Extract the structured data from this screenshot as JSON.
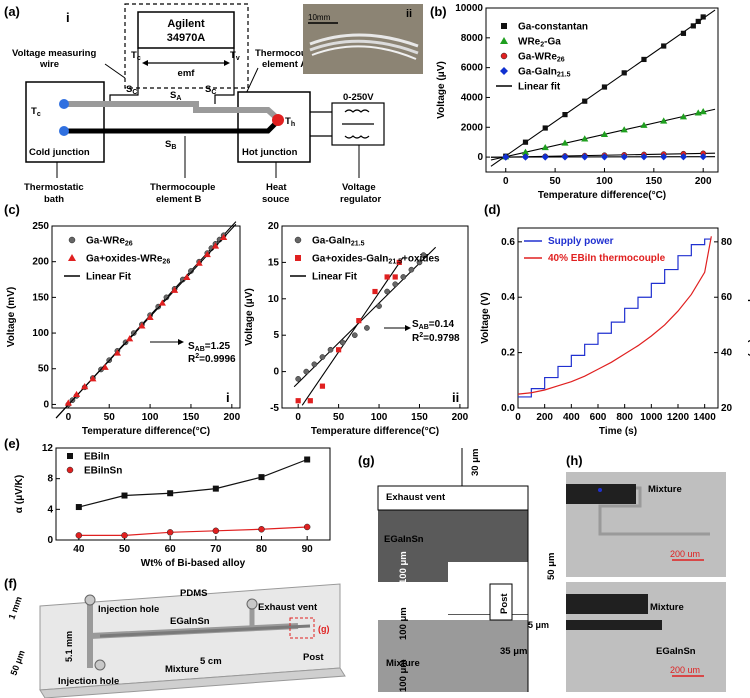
{
  "panel_labels": {
    "a": "(a)",
    "b": "(b)",
    "c": "(c)",
    "d": "(d)",
    "e": "(e)",
    "f": "(f)",
    "g": "(g)",
    "h": "(h)"
  },
  "panel_a": {
    "sub_i": "i",
    "sub_ii": "ii",
    "instrument_line1": "Agilent",
    "instrument_line2": "34970A",
    "tc": "T",
    "tc_sub": "c",
    "tv": "T",
    "tv_sub": "v",
    "emf": "emf",
    "sc": "S",
    "sc_sub": "C",
    "sa": "S",
    "sa_sub": "A",
    "sb": "S",
    "sb_sub": "B",
    "th": "T",
    "th_sub": "h",
    "tcold": "T",
    "tcold_sub": "c",
    "voltage_wire_1": "Voltage measuring",
    "voltage_wire_2": "wire",
    "element_a_1": "Thermocouple",
    "element_a_2": "element A",
    "source_range": "0-250V",
    "cold_junction": "Cold junction",
    "hot_junction": "Hot junction",
    "bath_1": "Thermostatic",
    "bath_2": "bath",
    "element_b_1": "Thermocouple",
    "element_b_2": "element B",
    "heat_1": "Heat",
    "heat_2": "souce",
    "reg_1": "Voltage",
    "reg_2": "regulator",
    "scale_bar": "10mm"
  },
  "chart_data": [
    {
      "id": "b",
      "type": "scatter",
      "xlabel": "Temperature difference(°C)",
      "ylabel": "Voltage (μV)",
      "xlim": [
        -20,
        215
      ],
      "ylim": [
        -1000,
        10000
      ],
      "xticks": [
        "0",
        "50",
        "100",
        "150",
        "200"
      ],
      "yticks": [
        "0",
        "2000",
        "4000",
        "6000",
        "8000",
        "10000"
      ],
      "legend_position": "top-left",
      "series": [
        {
          "name": "Ga-constantan",
          "marker": "square",
          "color": "#111111",
          "x": [
            0,
            20,
            40,
            60,
            80,
            100,
            120,
            140,
            160,
            180,
            190,
            195,
            200
          ],
          "values": [
            60,
            1000,
            1950,
            2850,
            3750,
            4700,
            5650,
            6550,
            7450,
            8300,
            8800,
            9100,
            9400
          ]
        },
        {
          "name": "WRe",
          "name_sub": "2",
          "name_tail": "-Ga",
          "marker": "triangle",
          "color": "#1f9f1f",
          "x": [
            0,
            20,
            40,
            60,
            80,
            100,
            120,
            140,
            160,
            180,
            195,
            200
          ],
          "values": [
            20,
            330,
            640,
            940,
            1220,
            1520,
            1830,
            2130,
            2420,
            2700,
            2960,
            3050
          ]
        },
        {
          "name": "Ga-WRe",
          "name_sub": "26",
          "marker": "circle",
          "color": "#e02020",
          "x": [
            0,
            20,
            40,
            60,
            80,
            100,
            120,
            140,
            160,
            180,
            200
          ],
          "values": [
            0,
            25,
            50,
            75,
            100,
            125,
            150,
            175,
            200,
            225,
            250
          ]
        },
        {
          "name": "Ga-GaIn",
          "name_sub": "21.5",
          "marker": "diamond",
          "color": "#1030d0",
          "x": [
            0,
            20,
            40,
            60,
            80,
            100,
            120,
            140,
            160,
            180,
            200
          ],
          "values": [
            0,
            3,
            6,
            9,
            12,
            14,
            17,
            20,
            22,
            25,
            28
          ]
        }
      ],
      "fit_label": "Linear fit"
    },
    {
      "id": "c-i",
      "type": "scatter",
      "sub": "i",
      "xlabel": "Temperature difference(°C)",
      "ylabel": "Voltage (mV)",
      "xlim": [
        -20,
        210
      ],
      "ylim": [
        -5,
        250
      ],
      "xticks": [
        "0",
        "50",
        "100",
        "150",
        "200"
      ],
      "yticks": [
        "0",
        "50",
        "100",
        "150",
        "200",
        "250"
      ],
      "series": [
        {
          "name": "Ga-WRe",
          "name_sub": "26",
          "marker": "circle",
          "color": "#666666",
          "x": [
            0,
            5,
            10,
            20,
            30,
            40,
            50,
            60,
            70,
            80,
            90,
            100,
            110,
            120,
            130,
            140,
            150,
            160,
            170,
            175,
            180,
            185,
            190
          ],
          "values": [
            0,
            6,
            12,
            24,
            37,
            49,
            62,
            75,
            87,
            100,
            112,
            125,
            137,
            150,
            162,
            175,
            187,
            200,
            212,
            219,
            225,
            231,
            237
          ]
        },
        {
          "name": "Ga+oxides-WRe",
          "name_sub": "26",
          "marker": "triangle",
          "color": "#e02020",
          "x": [
            0,
            10,
            20,
            30,
            45,
            60,
            75,
            90,
            100,
            115,
            130,
            145,
            160,
            170,
            180,
            190
          ],
          "values": [
            2,
            14,
            25,
            36,
            52,
            72,
            92,
            110,
            122,
            142,
            160,
            178,
            198,
            210,
            222,
            234
          ]
        }
      ],
      "fit_label": "Linear Fit",
      "annotation_s": "S",
      "annotation_s_sub": "AB",
      "annotation_s_val": "=1.25",
      "annotation_r": "R",
      "annotation_r_sup": "2",
      "annotation_r_val": "=0.9996"
    },
    {
      "id": "c-ii",
      "type": "scatter",
      "sub": "ii",
      "xlabel": "Temperature difference(°C)",
      "ylabel": "Voltage (μV)",
      "xlim": [
        -20,
        210
      ],
      "ylim": [
        -5,
        20
      ],
      "xticks": [
        "0",
        "50",
        "100",
        "150",
        "200"
      ],
      "yticks": [
        "-5",
        "0",
        "5",
        "10",
        "15",
        "20"
      ],
      "series": [
        {
          "name": "Ga-GaIn",
          "name_sub": "21.5",
          "marker": "circle",
          "color": "#666666",
          "x": [
            0,
            10,
            20,
            30,
            40,
            55,
            70,
            85,
            100,
            110,
            120,
            130,
            140,
            150,
            155
          ],
          "values": [
            -1,
            0,
            1,
            2,
            3,
            4,
            5,
            6,
            9,
            11,
            12,
            13,
            14,
            15,
            16
          ]
        },
        {
          "name": "Ga+oxides-GaIn",
          "name_sub": "21.5",
          "name_tail": "+oxides",
          "marker": "square",
          "color": "#e02020",
          "x": [
            0,
            15,
            30,
            50,
            75,
            95,
            110,
            120,
            125
          ],
          "values": [
            -4,
            -4,
            -2,
            3,
            7,
            11,
            13,
            13,
            15
          ]
        }
      ],
      "fit_label": "Linear Fit",
      "annotation_s": "S",
      "annotation_s_sub": "AB",
      "annotation_s_val": "=0.14",
      "annotation_r": "R",
      "annotation_r_sup": "2",
      "annotation_r_val": "=0.9798"
    },
    {
      "id": "d",
      "type": "line",
      "xlabel": "Time (s)",
      "ylabel": "Voltage (V)",
      "y2label": "Temperature(°C)",
      "xlim": [
        0,
        1500
      ],
      "ylim": [
        0,
        0.65
      ],
      "y2lim": [
        20,
        85
      ],
      "xticks": [
        "0",
        "200",
        "400",
        "600",
        "800",
        "1000",
        "1200",
        "1400"
      ],
      "yticks": [
        "0.0",
        "0.2",
        "0.4",
        "0.6"
      ],
      "y2ticks": [
        "20",
        "40",
        "60",
        "80"
      ],
      "legend_position": "top-left",
      "series": [
        {
          "name": "Supply power",
          "color": "#2030d0",
          "x": [
            0,
            100,
            100,
            200,
            200,
            300,
            300,
            400,
            400,
            500,
            500,
            600,
            600,
            700,
            700,
            800,
            800,
            900,
            900,
            1000,
            1000,
            1100,
            1100,
            1200,
            1200,
            1300,
            1300,
            1400,
            1400,
            1450
          ],
          "values": [
            0.04,
            0.04,
            0.07,
            0.07,
            0.11,
            0.11,
            0.15,
            0.15,
            0.19,
            0.19,
            0.23,
            0.23,
            0.27,
            0.27,
            0.31,
            0.31,
            0.36,
            0.36,
            0.4,
            0.4,
            0.45,
            0.45,
            0.5,
            0.5,
            0.55,
            0.55,
            0.59,
            0.59,
            0.61,
            0.61
          ]
        },
        {
          "name": "40% EBiIn thermocouple",
          "color": "#e02020",
          "x": [
            0,
            100,
            200,
            300,
            400,
            500,
            600,
            700,
            800,
            900,
            1000,
            1100,
            1200,
            1300,
            1400,
            1450
          ],
          "values": [
            25,
            25.5,
            26.5,
            28,
            29.5,
            31.5,
            34,
            36.5,
            39.5,
            42.5,
            46,
            50,
            55,
            61,
            69,
            82
          ]
        }
      ]
    },
    {
      "id": "e",
      "type": "line",
      "xlabel": "Wt% of Bi-based alloy",
      "ylabel": "α (μV/K)",
      "xlim": [
        35,
        95
      ],
      "ylim": [
        0,
        12
      ],
      "xticks": [
        "40",
        "50",
        "60",
        "70",
        "80",
        "90"
      ],
      "yticks": [
        "0",
        "4",
        "8",
        "12"
      ],
      "legend_position": "top-left",
      "categories": [
        40,
        50,
        60,
        70,
        80,
        90
      ],
      "series": [
        {
          "name": "EBiIn",
          "marker": "square",
          "color": "#111111",
          "values": [
            4.3,
            5.8,
            6.1,
            6.7,
            8.2,
            10.5
          ]
        },
        {
          "name": "EBiInSn",
          "marker": "circle",
          "color": "#e02020",
          "values": [
            0.6,
            0.6,
            1.0,
            1.2,
            1.4,
            1.7
          ]
        }
      ]
    }
  ],
  "panel_f": {
    "pdms": "PDMS",
    "injection_top": "Injection hole",
    "eqainsn": "EGaInSn",
    "exhaust": "Exhaust vent",
    "g_tag": "(g)",
    "dim_1mm": "1 mm",
    "dim_51mm": "5.1 mm",
    "dim_50um": "50 μm",
    "injection_bottom": "Injection hole",
    "dim_5cm": "5 cm",
    "mixture": "Mixture",
    "post": "Post"
  },
  "panel_g": {
    "exhaust": "Exhaust vent",
    "dim_30": "30 μm",
    "egainsn": "EGaInSn",
    "dim_100a": "100 μm",
    "dim_100b": "100 μm",
    "dim_100c": "100 μm",
    "dim_50": "50 μm",
    "dim_5": "5 μm",
    "dim_35": "35 μm",
    "post": "Post",
    "mixture": "Mixture"
  },
  "panel_h": {
    "mixture_top": "Mixture",
    "scale_top": "200 um",
    "mixture_bottom": "Mixture",
    "egainsn": "EGaInSn",
    "scale_bottom": "200 um"
  },
  "colors": {
    "dark_gray": "#5a5a5a",
    "mid_gray": "#9a9a9a",
    "red": "#e02020",
    "blue": "#2030d0",
    "green": "#1f9f1f"
  }
}
